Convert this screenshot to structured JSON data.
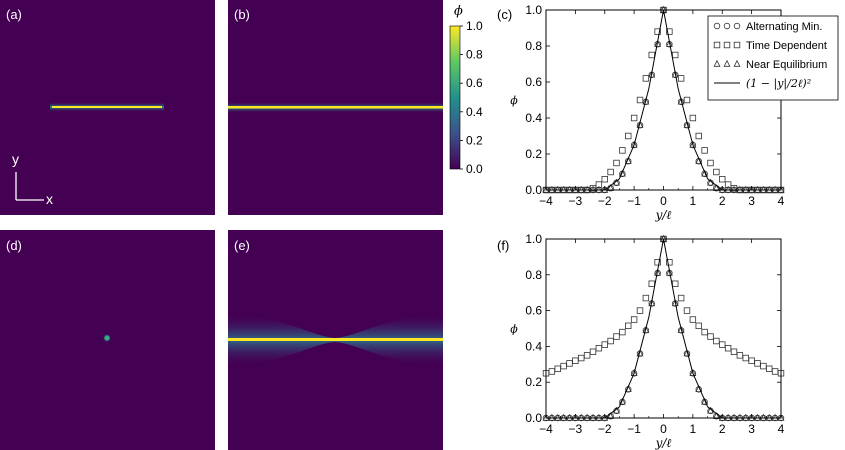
{
  "panels": {
    "a": {
      "label": "(a)"
    },
    "b": {
      "label": "(b)"
    },
    "c": {
      "label": "(c)"
    },
    "d": {
      "label": "(d)"
    },
    "e": {
      "label": "(e)"
    },
    "f": {
      "label": "(f)"
    }
  },
  "axes_indicator": {
    "y_label": "y",
    "x_label": "x"
  },
  "colorbar": {
    "symbol": "ϕ",
    "ticks": [
      "1.0",
      "0.8",
      "0.6",
      "0.4",
      "0.2",
      "0.0"
    ],
    "range": [
      0,
      1
    ],
    "colors": [
      "#440154",
      "#3b528b",
      "#21918c",
      "#5ec962",
      "#fde725"
    ]
  },
  "legend": {
    "entries": [
      {
        "marker": "circle",
        "label": "Alternating Min."
      },
      {
        "marker": "square",
        "label": "Time Dependent"
      },
      {
        "marker": "triangle",
        "label": "Near Equilibrium"
      },
      {
        "marker": "line",
        "label": "(1 − |y|/2ℓ)²"
      }
    ]
  },
  "chart_data": [
    {
      "panel": "c",
      "type": "scatter",
      "xlabel": "y/ℓ",
      "ylabel": "ϕ",
      "xlim": [
        -4,
        4
      ],
      "ylim": [
        0,
        1
      ],
      "xticks": [
        "-4",
        "-3",
        "-2",
        "-1",
        "0",
        "1",
        "2",
        "3",
        "4"
      ],
      "yticks": [
        "0.0",
        "0.2",
        "0.4",
        "0.6",
        "0.8",
        "1.0"
      ],
      "grid": false,
      "legend_position": "top-right",
      "x": [
        -4.0,
        -3.8,
        -3.6,
        -3.4,
        -3.2,
        -3.0,
        -2.8,
        -2.6,
        -2.4,
        -2.2,
        -2.0,
        -1.8,
        -1.6,
        -1.4,
        -1.2,
        -1.0,
        -0.8,
        -0.6,
        -0.4,
        -0.2,
        0.0,
        0.2,
        0.4,
        0.6,
        0.8,
        1.0,
        1.2,
        1.4,
        1.6,
        1.8,
        2.0,
        2.2,
        2.4,
        2.6,
        2.8,
        3.0,
        3.2,
        3.4,
        3.6,
        3.8,
        4.0
      ],
      "series": [
        {
          "name": "Alternating Min.",
          "marker": "circle",
          "values": [
            0.0,
            0.0,
            0.0,
            0.0,
            0.0,
            0.0,
            0.0,
            0.0,
            0.0,
            0.0,
            0.0,
            0.01,
            0.04,
            0.09,
            0.16,
            0.25,
            0.36,
            0.49,
            0.64,
            0.81,
            1.0,
            0.81,
            0.64,
            0.49,
            0.36,
            0.25,
            0.16,
            0.09,
            0.04,
            0.01,
            0.0,
            0.0,
            0.0,
            0.0,
            0.0,
            0.0,
            0.0,
            0.0,
            0.0,
            0.0,
            0.0
          ]
        },
        {
          "name": "Time Dependent",
          "marker": "square",
          "values": [
            0.0,
            0.0,
            0.0,
            0.0,
            0.0,
            0.0,
            0.0,
            0.0,
            0.01,
            0.03,
            0.06,
            0.1,
            0.15,
            0.22,
            0.3,
            0.4,
            0.5,
            0.62,
            0.75,
            0.88,
            1.0,
            0.88,
            0.75,
            0.62,
            0.5,
            0.4,
            0.3,
            0.22,
            0.15,
            0.1,
            0.06,
            0.03,
            0.01,
            0.0,
            0.0,
            0.0,
            0.0,
            0.0,
            0.0,
            0.0,
            0.0
          ]
        },
        {
          "name": "Near Equilibrium",
          "marker": "triangle",
          "values": [
            0.0,
            0.0,
            0.0,
            0.0,
            0.0,
            0.0,
            0.0,
            0.0,
            0.0,
            0.0,
            0.0,
            0.01,
            0.04,
            0.09,
            0.16,
            0.25,
            0.36,
            0.49,
            0.64,
            0.81,
            1.0,
            0.81,
            0.64,
            0.49,
            0.36,
            0.25,
            0.16,
            0.09,
            0.04,
            0.01,
            0.0,
            0.0,
            0.0,
            0.0,
            0.0,
            0.0,
            0.0,
            0.0,
            0.0,
            0.0,
            0.0
          ]
        },
        {
          "name": "(1 − |y|/2ℓ)²",
          "marker": "line",
          "x": [
            -4,
            -2,
            -1.5,
            -1,
            -0.5,
            0,
            0.5,
            1,
            1.5,
            2,
            4
          ],
          "values": [
            0,
            0,
            0.0625,
            0.25,
            0.5625,
            1,
            0.5625,
            0.25,
            0.0625,
            0,
            0
          ]
        }
      ]
    },
    {
      "panel": "f",
      "type": "scatter",
      "xlabel": "y/ℓ",
      "ylabel": "ϕ",
      "xlim": [
        -4,
        4
      ],
      "ylim": [
        0,
        1
      ],
      "xticks": [
        "-4",
        "-3",
        "-2",
        "-1",
        "0",
        "1",
        "2",
        "3",
        "4"
      ],
      "yticks": [
        "0.0",
        "0.2",
        "0.4",
        "0.6",
        "0.8",
        "1.0"
      ],
      "grid": false,
      "x": [
        -4.0,
        -3.8,
        -3.6,
        -3.4,
        -3.2,
        -3.0,
        -2.8,
        -2.6,
        -2.4,
        -2.2,
        -2.0,
        -1.8,
        -1.6,
        -1.4,
        -1.2,
        -1.0,
        -0.8,
        -0.6,
        -0.4,
        -0.2,
        0.0,
        0.2,
        0.4,
        0.6,
        0.8,
        1.0,
        1.2,
        1.4,
        1.6,
        1.8,
        2.0,
        2.2,
        2.4,
        2.6,
        2.8,
        3.0,
        3.2,
        3.4,
        3.6,
        3.8,
        4.0
      ],
      "series": [
        {
          "name": "Alternating Min.",
          "marker": "circle",
          "values": [
            0.0,
            0.0,
            0.0,
            0.0,
            0.0,
            0.0,
            0.0,
            0.0,
            0.0,
            0.0,
            0.0,
            0.01,
            0.04,
            0.09,
            0.16,
            0.25,
            0.36,
            0.49,
            0.64,
            0.81,
            1.0,
            0.81,
            0.64,
            0.49,
            0.36,
            0.25,
            0.16,
            0.09,
            0.04,
            0.01,
            0.0,
            0.0,
            0.0,
            0.0,
            0.0,
            0.0,
            0.0,
            0.0,
            0.0,
            0.0,
            0.0
          ]
        },
        {
          "name": "Time Dependent",
          "marker": "square",
          "values": [
            0.25,
            0.26,
            0.275,
            0.29,
            0.305,
            0.32,
            0.335,
            0.35,
            0.37,
            0.39,
            0.41,
            0.43,
            0.455,
            0.48,
            0.515,
            0.55,
            0.6,
            0.67,
            0.75,
            0.87,
            1.0,
            0.87,
            0.75,
            0.67,
            0.6,
            0.55,
            0.515,
            0.48,
            0.455,
            0.43,
            0.41,
            0.39,
            0.37,
            0.35,
            0.335,
            0.32,
            0.305,
            0.29,
            0.275,
            0.26,
            0.25
          ]
        },
        {
          "name": "Near Equilibrium",
          "marker": "triangle",
          "values": [
            0.0,
            0.0,
            0.0,
            0.0,
            0.0,
            0.0,
            0.0,
            0.0,
            0.0,
            0.0,
            0.0,
            0.01,
            0.04,
            0.09,
            0.16,
            0.25,
            0.36,
            0.49,
            0.64,
            0.81,
            1.0,
            0.81,
            0.64,
            0.49,
            0.36,
            0.25,
            0.16,
            0.09,
            0.04,
            0.01,
            0.0,
            0.0,
            0.0,
            0.0,
            0.0,
            0.0,
            0.0,
            0.0,
            0.0,
            0.0,
            0.0
          ]
        },
        {
          "name": "(1 − |y|/2ℓ)²",
          "marker": "line",
          "x": [
            -4,
            -2,
            -1.5,
            -1,
            -0.5,
            0,
            0.5,
            1,
            1.5,
            2,
            4
          ],
          "values": [
            0,
            0,
            0.0625,
            0.25,
            0.5625,
            1,
            0.5625,
            0.25,
            0.0625,
            0,
            0
          ]
        }
      ]
    }
  ]
}
